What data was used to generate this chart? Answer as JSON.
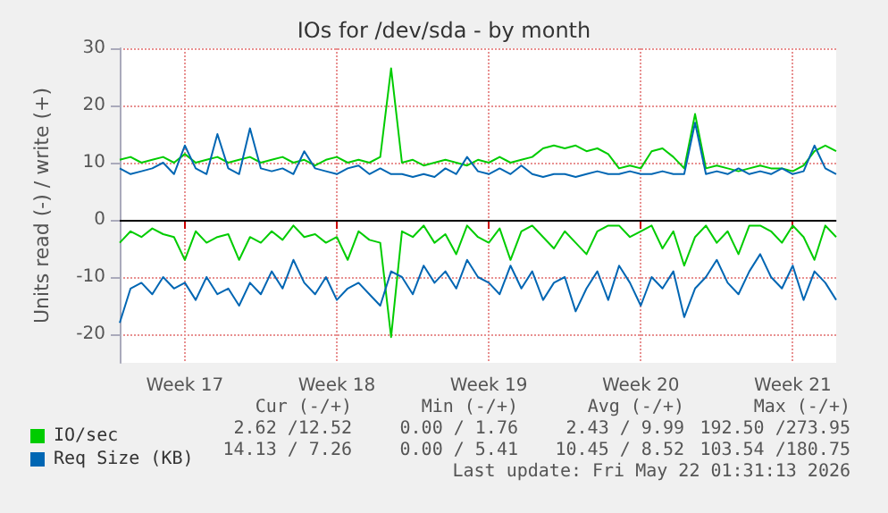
{
  "chart_data": {
    "type": "line",
    "title": "IOs for /dev/sda - by month",
    "ylabel": "Units read (-) / write (+)",
    "categories": [
      null,
      null,
      null,
      null,
      null,
      null,
      "Week 17",
      null,
      null,
      null,
      null,
      null,
      null,
      null,
      null,
      null,
      null,
      null,
      null,
      null,
      "Week 18",
      null,
      null,
      null,
      null,
      null,
      null,
      null,
      null,
      null,
      null,
      null,
      null,
      null,
      "Week 19",
      null,
      null,
      null,
      null,
      null,
      null,
      null,
      null,
      null,
      null,
      null,
      null,
      null,
      "Week 20",
      null,
      null,
      null,
      null,
      null,
      null,
      null,
      null,
      null,
      null,
      null,
      null,
      null,
      "Week 21",
      null,
      null,
      null,
      null
    ],
    "series": [
      {
        "name": "IO/sec",
        "color": "#00cc00",
        "values": [
          10.5,
          11,
          10,
          10.5,
          11,
          10,
          11.5,
          10,
          10.5,
          11,
          10,
          10.5,
          11,
          10,
          10.5,
          11,
          10,
          10.5,
          9.5,
          10.5,
          11,
          10,
          10.5,
          10,
          11,
          26.5,
          10,
          10.5,
          9.5,
          10,
          10.5,
          10,
          9.5,
          10.5,
          10,
          11,
          10,
          10.5,
          11,
          12.5,
          13,
          12.5,
          13,
          12,
          12.5,
          11.5,
          9,
          9.5,
          9,
          12,
          12.5,
          11,
          9,
          18.5,
          9,
          9.5,
          9,
          8.5,
          9,
          9.5,
          9,
          9,
          8.5,
          9.5,
          12,
          13,
          12
        ]
      },
      {
        "name": "Req Size (KB)",
        "color": "#0066b3",
        "values": [
          9,
          8,
          8.5,
          9,
          10,
          8,
          13,
          9,
          8,
          15,
          9,
          8,
          16,
          9,
          8.5,
          9,
          8,
          12,
          9,
          8.5,
          8,
          9,
          9.5,
          8,
          9,
          8,
          8,
          7.5,
          8,
          7.5,
          9,
          8,
          11,
          8.5,
          8,
          9,
          8,
          9.5,
          8,
          7.5,
          8,
          8,
          7.5,
          8,
          8.5,
          8,
          8,
          8.5,
          8,
          8,
          8.5,
          8,
          8,
          17,
          8,
          8.5,
          8,
          9,
          8,
          8.5,
          8,
          9,
          8,
          8.5,
          13,
          9,
          8
        ]
      },
      {
        "color": "#00cc00",
        "values": [
          -4,
          -2,
          -3,
          -1.5,
          -2.5,
          -3,
          -7,
          -2,
          -4,
          -3,
          -2.5,
          -7,
          -3,
          -4,
          -2,
          -3.5,
          -1,
          -3,
          -2.5,
          -4,
          -3,
          -7,
          -2,
          -3.5,
          -4,
          -20.5,
          -2,
          -3,
          -1,
          -4,
          -2.5,
          -6,
          -1,
          -3,
          -4,
          -1.5,
          -7,
          -2,
          -1,
          -3,
          -5,
          -2,
          -4,
          -6,
          -2,
          -1,
          -1,
          -3,
          -2,
          -1,
          -5,
          -2,
          -8,
          -3,
          -1,
          -4,
          -2,
          -6,
          -1,
          -1,
          -2,
          -4,
          -1,
          -3,
          -7,
          -1,
          -3
        ]
      },
      {
        "color": "#0066b3",
        "values": [
          -18,
          -12,
          -11,
          -13,
          -10,
          -12,
          -11,
          -14,
          -10,
          -13,
          -12,
          -15,
          -11,
          -13,
          -9,
          -12,
          -7,
          -11,
          -13,
          -10,
          -14,
          -12,
          -11,
          -13,
          -15,
          -9,
          -10,
          -13,
          -8,
          -11,
          -9,
          -12,
          -7,
          -10,
          -11,
          -13,
          -8,
          -12,
          -9,
          -14,
          -11,
          -10,
          -16,
          -12,
          -9,
          -14,
          -8,
          -11,
          -15,
          -10,
          -12,
          -9,
          -17,
          -12,
          -10,
          -7,
          -11,
          -13,
          -9,
          -6,
          -10,
          -12,
          -8,
          -14,
          -9,
          -11,
          -14
        ]
      }
    ],
    "ylim": [
      -25,
      30
    ],
    "yticks": [
      -20,
      -10,
      0,
      10,
      20,
      30
    ],
    "ref_lines": [
      {
        "axis": "y",
        "value": 0,
        "color": "#000000"
      }
    ],
    "grid": true,
    "legend": "bottom left",
    "marker": "none",
    "line_style": "solid",
    "annotations": [
      "Cur (-/+)",
      "Min (-/+)",
      "Avg (-/+)",
      "Max (-/+)",
      "2.62 /12.52",
      "0.00 / 1.76",
      "2.43 / 9.99",
      "192.50 /273.95",
      "14.13 / 7.26",
      "0.00 / 5.41",
      "10.45 / 8.52",
      "103.54 /180.75",
      "Last update: Fri May 22 01:31:13 2026"
    ]
  }
}
